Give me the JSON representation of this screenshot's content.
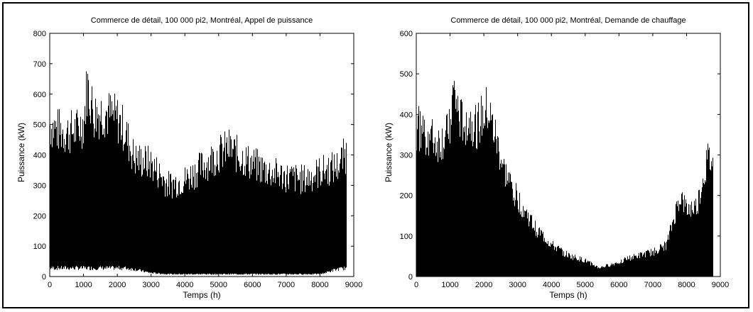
{
  "chart_data": [
    {
      "type": "bar",
      "title": "Commerce de détail, 100 000 pi2, Montréal, Appel de puissance",
      "xlabel": "Temps (h)",
      "ylabel": "Puissance (kW)",
      "xlim": [
        0,
        9000
      ],
      "ylim": [
        0,
        800
      ],
      "xticks": [
        0,
        1000,
        2000,
        3000,
        4000,
        5000,
        6000,
        7000,
        8000,
        9000
      ],
      "yticks": [
        0,
        100,
        200,
        300,
        400,
        500,
        600,
        700,
        800
      ],
      "grid": false,
      "color": "#000000",
      "envelope_x": [
        0,
        200,
        500,
        800,
        1000,
        1100,
        1300,
        1600,
        2000,
        2200,
        2500,
        2800,
        3000,
        3500,
        4000,
        4500,
        5000,
        5300,
        5600,
        6000,
        6500,
        7000,
        7500,
        8000,
        8500,
        8760
      ],
      "envelope_max": [
        580,
        560,
        550,
        560,
        590,
        735,
        620,
        630,
        600,
        560,
        450,
        440,
        430,
        350,
        370,
        420,
        470,
        490,
        460,
        430,
        400,
        380,
        370,
        400,
        420,
        470
      ],
      "envelope_min": [
        35,
        35,
        35,
        35,
        35,
        35,
        35,
        35,
        35,
        35,
        30,
        20,
        15,
        10,
        10,
        10,
        10,
        10,
        10,
        10,
        10,
        10,
        10,
        10,
        30,
        35
      ]
    },
    {
      "type": "bar",
      "title": "Commerce de détail, 100 000 pi2, Montréal, Demande de chauffage",
      "xlabel": "Temps (h)",
      "ylabel": "Puissance (kW)",
      "xlim": [
        0,
        9000
      ],
      "ylim": [
        0,
        600
      ],
      "xticks": [
        0,
        1000,
        2000,
        3000,
        4000,
        5000,
        6000,
        7000,
        8000,
        9000
      ],
      "yticks": [
        0,
        100,
        200,
        300,
        400,
        500,
        600
      ],
      "grid": false,
      "color": "#000000",
      "envelope_x": [
        0,
        300,
        600,
        900,
        1100,
        1300,
        1500,
        1800,
        2100,
        2300,
        2600,
        3000,
        3500,
        4000,
        4500,
        5000,
        5400,
        5800,
        6200,
        6600,
        7000,
        7400,
        7800,
        8000,
        8300,
        8600,
        8760
      ],
      "envelope_max": [
        430,
        410,
        380,
        400,
        525,
        440,
        450,
        430,
        475,
        410,
        300,
        220,
        140,
        90,
        60,
        45,
        25,
        35,
        50,
        60,
        70,
        90,
        230,
        190,
        200,
        330,
        330
      ],
      "envelope_min": [
        0,
        0,
        0,
        0,
        0,
        0,
        0,
        0,
        0,
        0,
        0,
        0,
        0,
        0,
        0,
        0,
        0,
        0,
        0,
        0,
        0,
        0,
        0,
        0,
        0,
        0,
        0
      ]
    }
  ]
}
